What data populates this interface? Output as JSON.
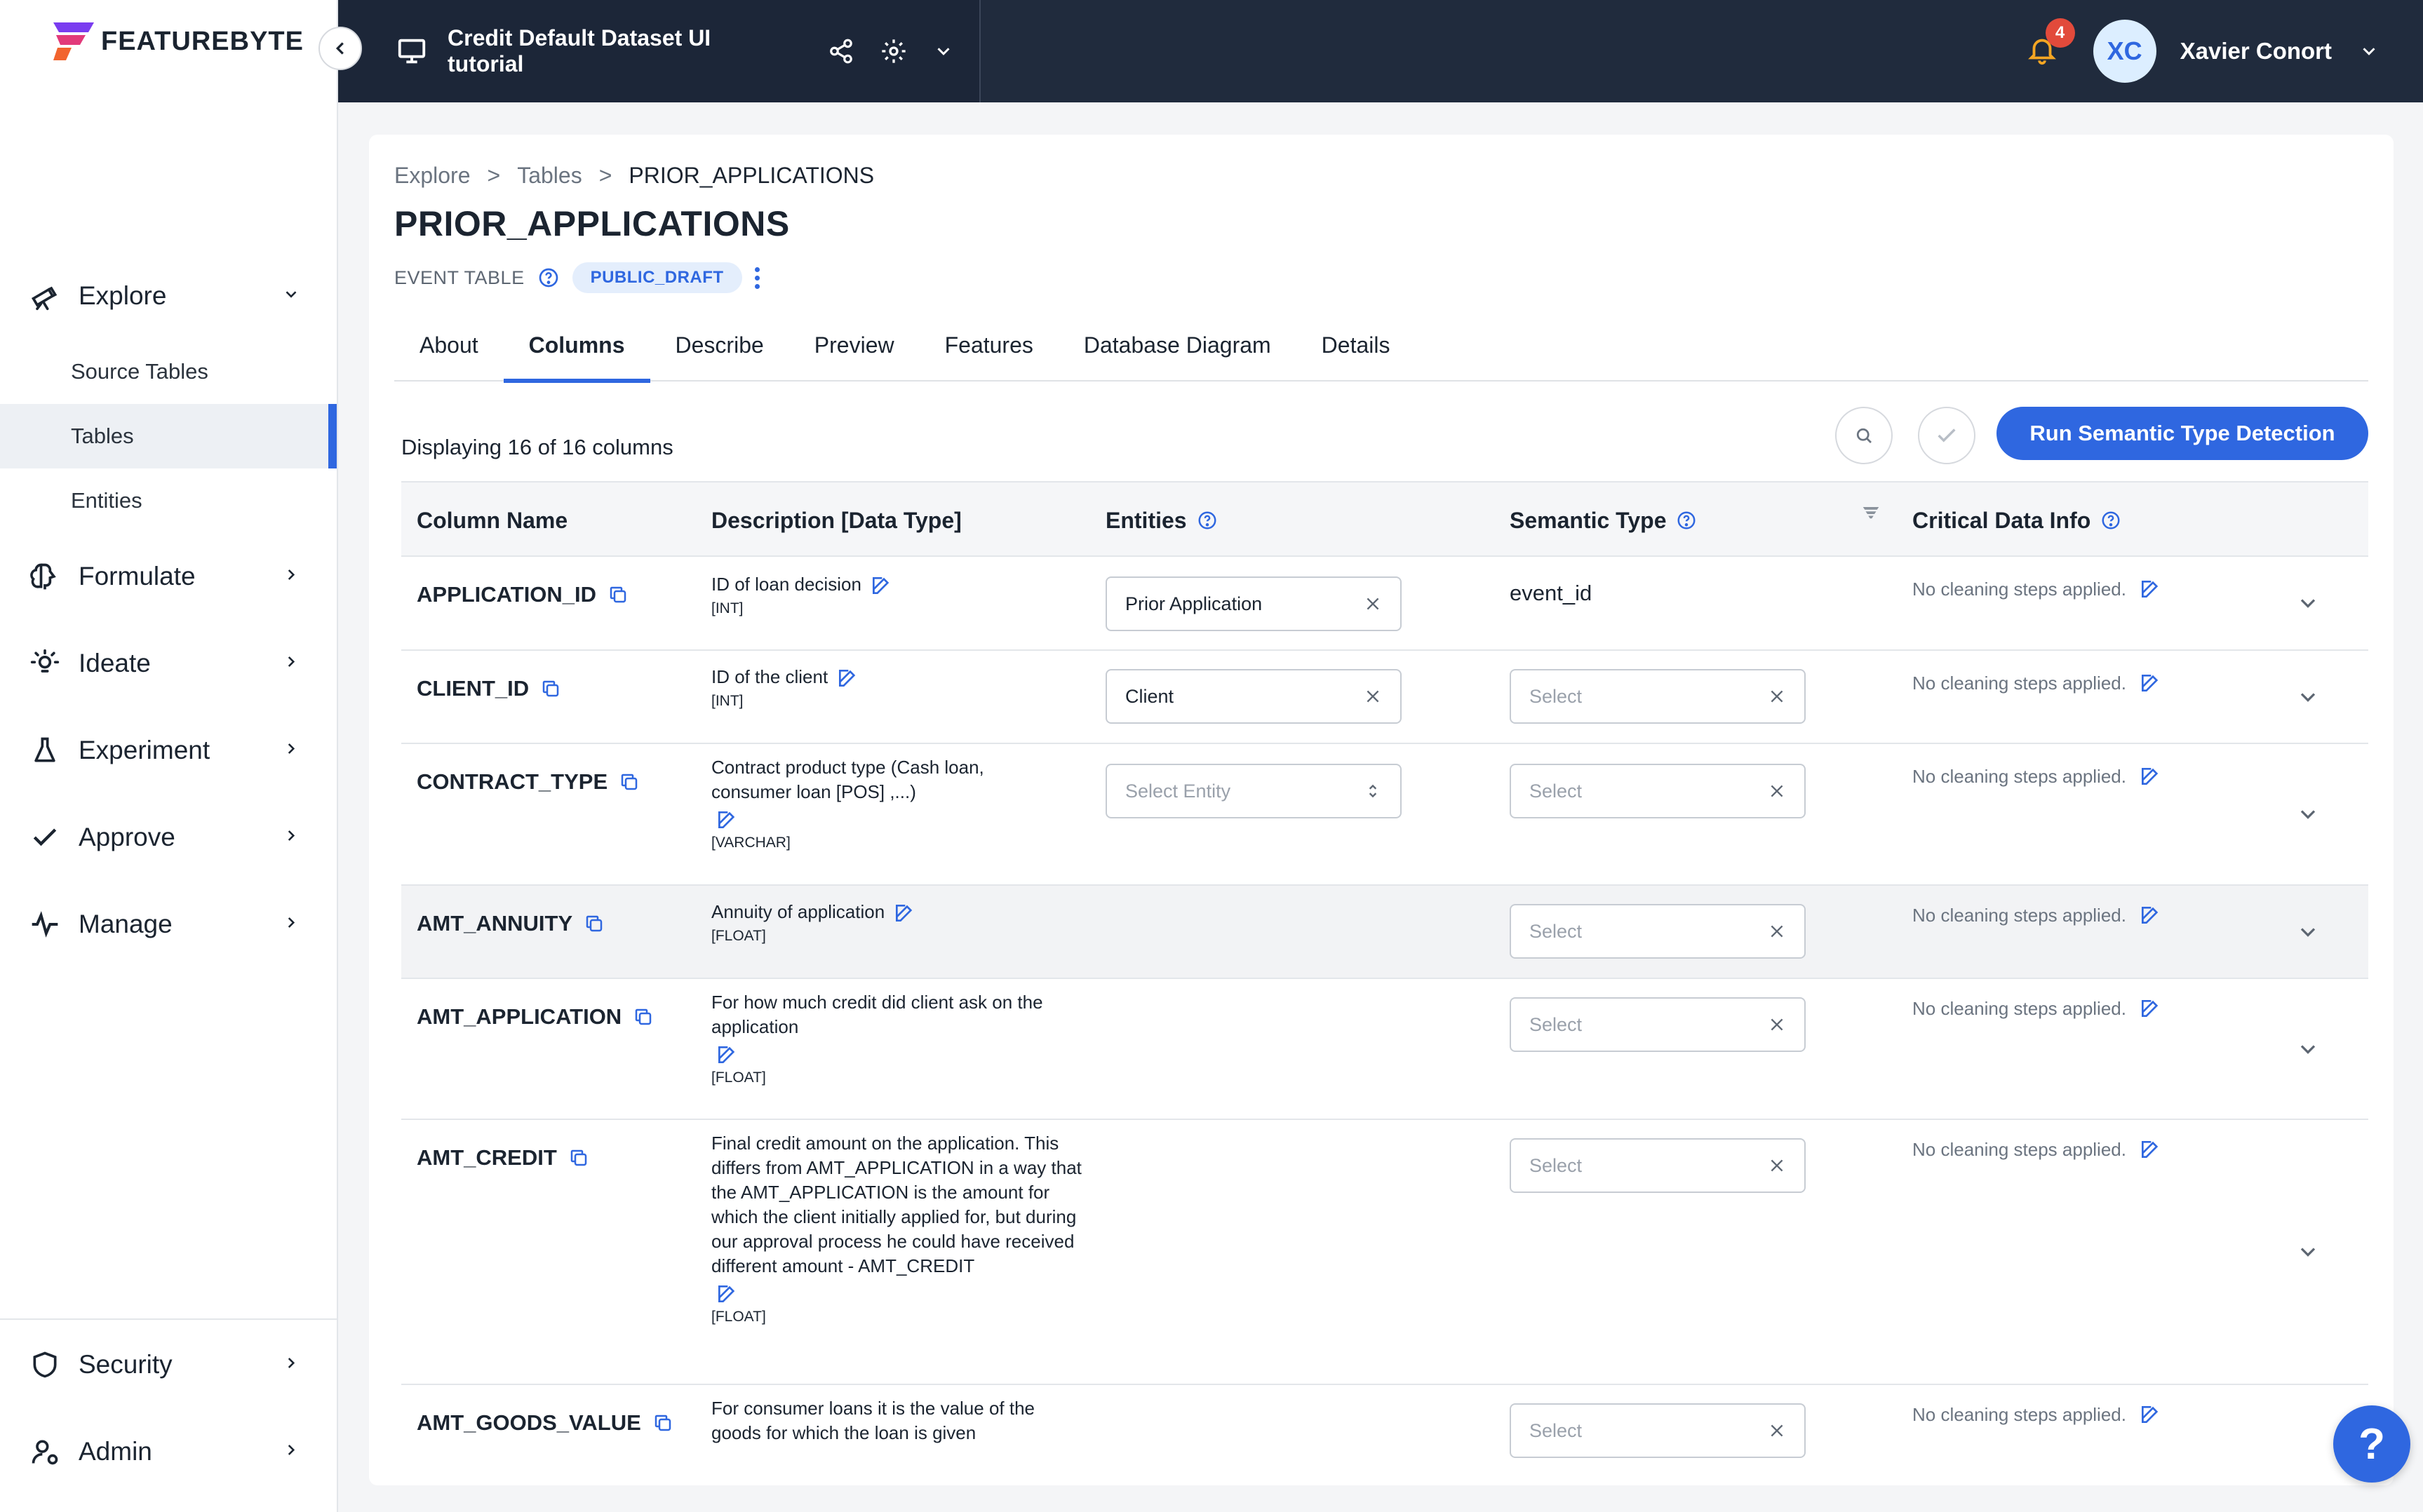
{
  "app": {
    "brand": "FEATUREBYTE",
    "project_title": "Credit Default Dataset UI tutorial",
    "notification_count": "4",
    "user_initials": "XC",
    "user_name": "Xavier Conort",
    "accent_color": "#2f67e0"
  },
  "sidebar": {
    "explore": {
      "label": "Explore",
      "sub": [
        "Source Tables",
        "Tables",
        "Entities"
      ],
      "active": "Tables"
    },
    "items": [
      {
        "label": "Formulate",
        "icon": "brain-icon"
      },
      {
        "label": "Ideate",
        "icon": "lightbulb-icon"
      },
      {
        "label": "Experiment",
        "icon": "flask-icon"
      },
      {
        "label": "Approve",
        "icon": "check-icon"
      },
      {
        "label": "Manage",
        "icon": "pulse-icon"
      }
    ],
    "bottom": [
      {
        "label": "Security",
        "icon": "shield-icon"
      },
      {
        "label": "Admin",
        "icon": "user-gear-icon"
      }
    ]
  },
  "page": {
    "breadcrumb": [
      "Explore",
      ">",
      "Tables",
      ">",
      "PRIOR_APPLICATIONS"
    ],
    "title": "PRIOR_APPLICATIONS",
    "table_type": "EVENT TABLE",
    "status": "PUBLIC_DRAFT",
    "tabs": [
      "About",
      "Columns",
      "Describe",
      "Preview",
      "Features",
      "Database Diagram",
      "Details"
    ],
    "active_tab": "Columns",
    "displaying": "Displaying 16 of 16 columns",
    "run_button": "Run Semantic Type Detection"
  },
  "table": {
    "headers": [
      "Column Name",
      "Description [Data Type]",
      "Entities",
      "Semantic Type",
      "Critical Data Info"
    ],
    "rows": [
      {
        "name": "APPLICATION_ID",
        "desc": "ID of loan decision",
        "dtype": "[INT]",
        "entity": "Prior Application",
        "semantic": "event_id",
        "cleaning": "No cleaning steps applied."
      },
      {
        "name": "CLIENT_ID",
        "desc": "ID of the client",
        "dtype": "[INT]",
        "entity": "Client",
        "semantic_placeholder": "Select",
        "cleaning": "No cleaning steps applied."
      },
      {
        "name": "CONTRACT_TYPE",
        "desc": "Contract product type (Cash loan, consumer loan [POS] ,...)",
        "dtype": "[VARCHAR]",
        "entity_placeholder": "Select Entity",
        "semantic_placeholder": "Select",
        "cleaning": "No cleaning steps applied."
      },
      {
        "name": "AMT_ANNUITY",
        "desc": "Annuity of application",
        "dtype": "[FLOAT]",
        "semantic_placeholder": "Select",
        "cleaning": "No cleaning steps applied."
      },
      {
        "name": "AMT_APPLICATION",
        "desc": "For how much credit did client ask on the application",
        "dtype": "[FLOAT]",
        "semantic_placeholder": "Select",
        "cleaning": "No cleaning steps applied."
      },
      {
        "name": "AMT_CREDIT",
        "desc": "Final credit amount on the application. This differs from AMT_APPLICATION in a way that the AMT_APPLICATION is the amount for which the client initially applied for, but during our approval process he could have received different amount - AMT_CREDIT",
        "dtype": "[FLOAT]",
        "semantic_placeholder": "Select",
        "cleaning": "No cleaning steps applied."
      },
      {
        "name": "AMT_GOODS_VALUE",
        "desc": "For consumer loans it is the value of the goods for which the loan is given",
        "semantic_placeholder": "Select",
        "cleaning": "No cleaning steps applied."
      }
    ]
  }
}
